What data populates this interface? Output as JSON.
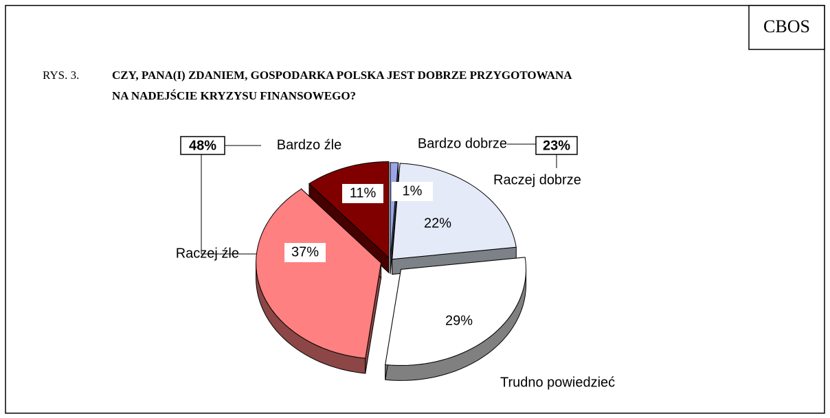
{
  "chart_data": {
    "type": "pie",
    "source": "CBOS",
    "figure_number": "RYS. 3.",
    "title_lines": [
      "CZY, PANA(I) ZDANIEM, GOSPODARKA POLSKA JEST DOBRZE PRZYGOTOWANA",
      "NA NADEJŚCIE KRYZYSU FINANSOWEGO?"
    ],
    "categories": [
      "Bardzo dobrze",
      "Raczej dobrze",
      "Trudno powiedzieć",
      "Raczej źle",
      "Bardzo źle"
    ],
    "values": [
      1,
      22,
      29,
      37,
      11
    ],
    "value_labels": [
      "1%",
      "22%",
      "29%",
      "37%",
      "11%"
    ],
    "colors": [
      "#9aa6e8",
      "#e4eaf8",
      "#ffffff",
      "#ff8080",
      "#800000"
    ],
    "groups": [
      {
        "value": 23,
        "label": "23%"
      },
      {
        "value": 48,
        "label": "48%"
      }
    ]
  }
}
